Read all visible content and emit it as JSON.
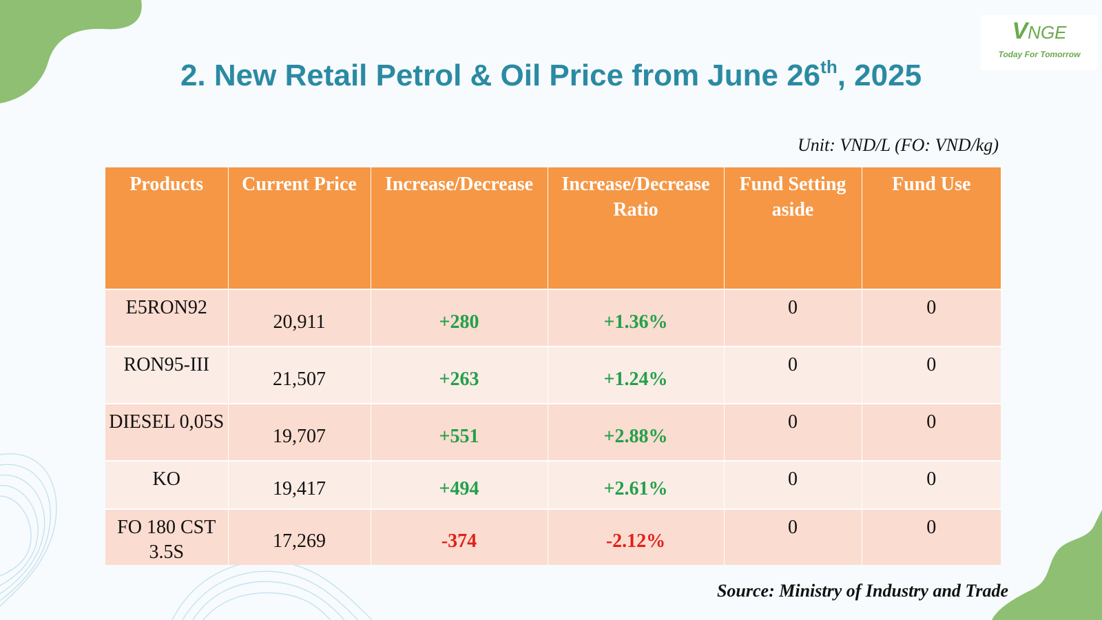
{
  "logo": {
    "brand_initial": "V",
    "brand_rest": "NGE",
    "tagline": "Today For Tomorrow"
  },
  "slide": {
    "title_main": "2. New Retail Petrol & Oil Price from June 26",
    "title_sup": "th",
    "title_end": ", 2025",
    "unit": "Unit: VND/L (FO: VND/kg)",
    "source": "Source: Ministry of Industry and Trade"
  },
  "table": {
    "headers": [
      "Products",
      "Current Price",
      "Increase/Decrease",
      "Increase/Decrease Ratio",
      "Fund Setting aside",
      "Fund Use"
    ],
    "rows": [
      {
        "product": "E5RON92",
        "price": "20,911",
        "change": "+280",
        "ratio": "+1.36%",
        "fund_setting": "0",
        "fund_use": "0"
      },
      {
        "product": "RON95-III",
        "price": "21,507",
        "change": "+263",
        "ratio": "+1.24%",
        "fund_setting": "0",
        "fund_use": "0"
      },
      {
        "product": "DIESEL 0,05S",
        "price": "19,707",
        "change": "+551",
        "ratio": "+2.88%",
        "fund_setting": "0",
        "fund_use": "0"
      },
      {
        "product": "KO",
        "price": "19,417",
        "change": "+494",
        "ratio": "+2.61%",
        "fund_setting": "0",
        "fund_use": "0"
      },
      {
        "product": "FO 180 CST 3.5S",
        "price": "17,269",
        "change": "-374",
        "ratio": "-2.12%",
        "fund_setting": "0",
        "fund_use": "0"
      }
    ]
  },
  "colors": {
    "title": "#2b8aa3",
    "header_bg": "#f59745",
    "row_odd": "#fbdcd0",
    "row_even": "#fcece6",
    "increase": "#22a04b",
    "decrease": "#e0211b",
    "accent_green": "#6aa94c"
  }
}
